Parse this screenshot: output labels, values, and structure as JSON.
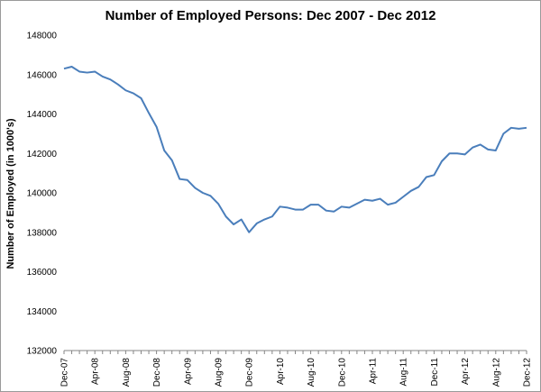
{
  "chart_data": {
    "type": "line",
    "title": "Number of Employed Persons: Dec 2007 - Dec 2012",
    "xlabel": "",
    "ylabel": "Number of Employed (in 1000's)",
    "ylim": [
      132000,
      148000
    ],
    "yticks": [
      132000,
      134000,
      136000,
      138000,
      140000,
      142000,
      144000,
      146000,
      148000
    ],
    "xtick_labels": [
      "Dec-07",
      "Apr-08",
      "Aug-08",
      "Dec-08",
      "Apr-09",
      "Aug-09",
      "Dec-09",
      "Apr-10",
      "Aug-10",
      "Dec-10",
      "Apr-11",
      "Aug-11",
      "Dec-11",
      "Apr-12",
      "Aug-12",
      "Dec-12"
    ],
    "grid": false,
    "legend": "none",
    "line_color": "#4a7ebb",
    "series": [
      {
        "values": [
          146300,
          146400,
          146150,
          146100,
          146150,
          145900,
          145750,
          145500,
          145200,
          145050,
          144800,
          144050,
          143350,
          142150,
          141650,
          140700,
          140650,
          140250,
          140000,
          139850,
          139450,
          138800,
          138400,
          138650,
          138000,
          138450,
          138650,
          138800,
          139300,
          139250,
          139150,
          139150,
          139400,
          139400,
          139100,
          139050,
          139300,
          139250,
          139450,
          139650,
          139600,
          139700,
          139400,
          139500,
          139800,
          140100,
          140300,
          140800,
          140900,
          141600,
          142000,
          142000,
          141950,
          142300,
          142450,
          142200,
          142150,
          143000,
          143300,
          143250,
          143300
        ]
      }
    ]
  }
}
